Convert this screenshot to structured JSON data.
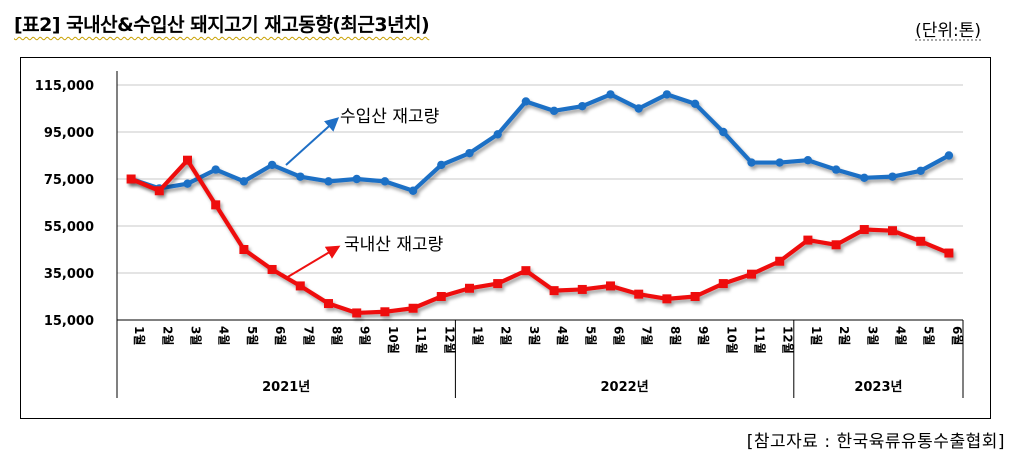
{
  "header": {
    "title": "[표2]  국내산&수입산  돼지고기  재고동향(최근3년치)",
    "unit": "(단위:톤)"
  },
  "footer": {
    "source": "[참고자료 : 한국육류유통수출협회]"
  },
  "chart_data": {
    "type": "line",
    "ylim": [
      15000,
      115000
    ],
    "yticks": [
      15000,
      35000,
      55000,
      75000,
      95000,
      115000
    ],
    "ytick_labels": [
      "15,000",
      "35,000",
      "55,000",
      "75,000",
      "95,000",
      "115,000"
    ],
    "month_labels": [
      "1월",
      "2월",
      "3월",
      "4월",
      "5월",
      "6월",
      "7월",
      "8월",
      "9월",
      "10월",
      "11월",
      "12월",
      "1월",
      "2월",
      "3월",
      "4월",
      "5월",
      "6월",
      "7월",
      "8월",
      "9월",
      "10월",
      "11월",
      "12월",
      "1월",
      "2월",
      "3월",
      "4월",
      "5월",
      "6월"
    ],
    "year_groups": [
      {
        "label": "2021년",
        "count": 12
      },
      {
        "label": "2022년",
        "count": 12
      },
      {
        "label": "2023년",
        "count": 6
      }
    ],
    "grid": true,
    "series": [
      {
        "name": "수입산 재고량",
        "color": "#1f6fc5",
        "values": [
          75000,
          71000,
          73000,
          79000,
          74000,
          81000,
          76000,
          74000,
          75000,
          74000,
          70000,
          81000,
          86000,
          94000,
          108000,
          104000,
          106000,
          111000,
          105000,
          111000,
          107000,
          95000,
          82000,
          82000,
          83000,
          79000,
          75500,
          76000,
          78500,
          85000
        ]
      },
      {
        "name": "국내산 재고량",
        "color": "#ee1111",
        "values": [
          75000,
          70000,
          83000,
          64000,
          45000,
          36500,
          29500,
          22000,
          18000,
          18500,
          20000,
          25000,
          28500,
          30500,
          36000,
          27500,
          28000,
          29500,
          26000,
          24000,
          25000,
          30500,
          34500,
          40000,
          49000,
          47000,
          53500,
          53000,
          48500,
          43500
        ]
      }
    ]
  }
}
